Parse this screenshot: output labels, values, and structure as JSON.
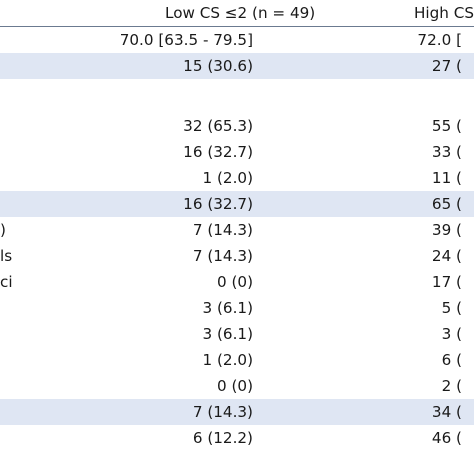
{
  "header": {
    "low": "Low CS ≤2 (n = 49)",
    "high": "High CS"
  },
  "rows": [
    {
      "label": "",
      "low": "70.0 [63.5 - 79.5]",
      "high": "72.0 [",
      "shaded": false
    },
    {
      "label": "",
      "low": "15 (30.6)",
      "high": "27 (",
      "shaded": true
    },
    {
      "label": "",
      "low": "",
      "high": "",
      "shaded": false,
      "blank": true
    },
    {
      "label": "",
      "low": "32 (65.3)",
      "high": "55 (",
      "shaded": false
    },
    {
      "label": "",
      "low": "16 (32.7)",
      "high": "33 (",
      "shaded": false
    },
    {
      "label": "",
      "low": "1 (2.0)",
      "high": "11 (",
      "shaded": false
    },
    {
      "label": "",
      "low": "16 (32.7)",
      "high": "65 (",
      "shaded": true
    },
    {
      "label": ")",
      "low": "7 (14.3)",
      "high": "39 (",
      "shaded": false
    },
    {
      "label": "ls",
      "low": "7 (14.3)",
      "high": "24 (",
      "shaded": false
    },
    {
      "label": "ci",
      "low": "0 (0)",
      "high": "17 (",
      "shaded": false
    },
    {
      "label": "",
      "low": "3 (6.1)",
      "high": "5 (",
      "shaded": false
    },
    {
      "label": "",
      "low": "3 (6.1)",
      "high": "3 (",
      "shaded": false
    },
    {
      "label": "",
      "low": "1 (2.0)",
      "high": "6 (",
      "shaded": false
    },
    {
      "label": "",
      "low": "0 (0)",
      "high": "2 (",
      "shaded": false
    },
    {
      "label": "",
      "low": "7 (14.3)",
      "high": "34 (",
      "shaded": true
    },
    {
      "label": "",
      "low": "6 (12.2)",
      "high": "46 (",
      "shaded": false
    }
  ]
}
